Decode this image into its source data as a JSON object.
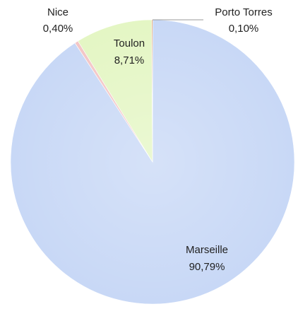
{
  "chart_data": {
    "type": "pie",
    "categories": [
      "Marseille",
      "Nice",
      "Toulon",
      "Porto Torres"
    ],
    "values": [
      90.79,
      0.4,
      8.71,
      0.1
    ],
    "value_labels": [
      "90,79%",
      "0,40%",
      "8,71%",
      "0,10%"
    ],
    "colors": [
      "#c8d8f6",
      "#f3c6c6",
      "#e4f6c4",
      "#e0883a"
    ]
  }
}
